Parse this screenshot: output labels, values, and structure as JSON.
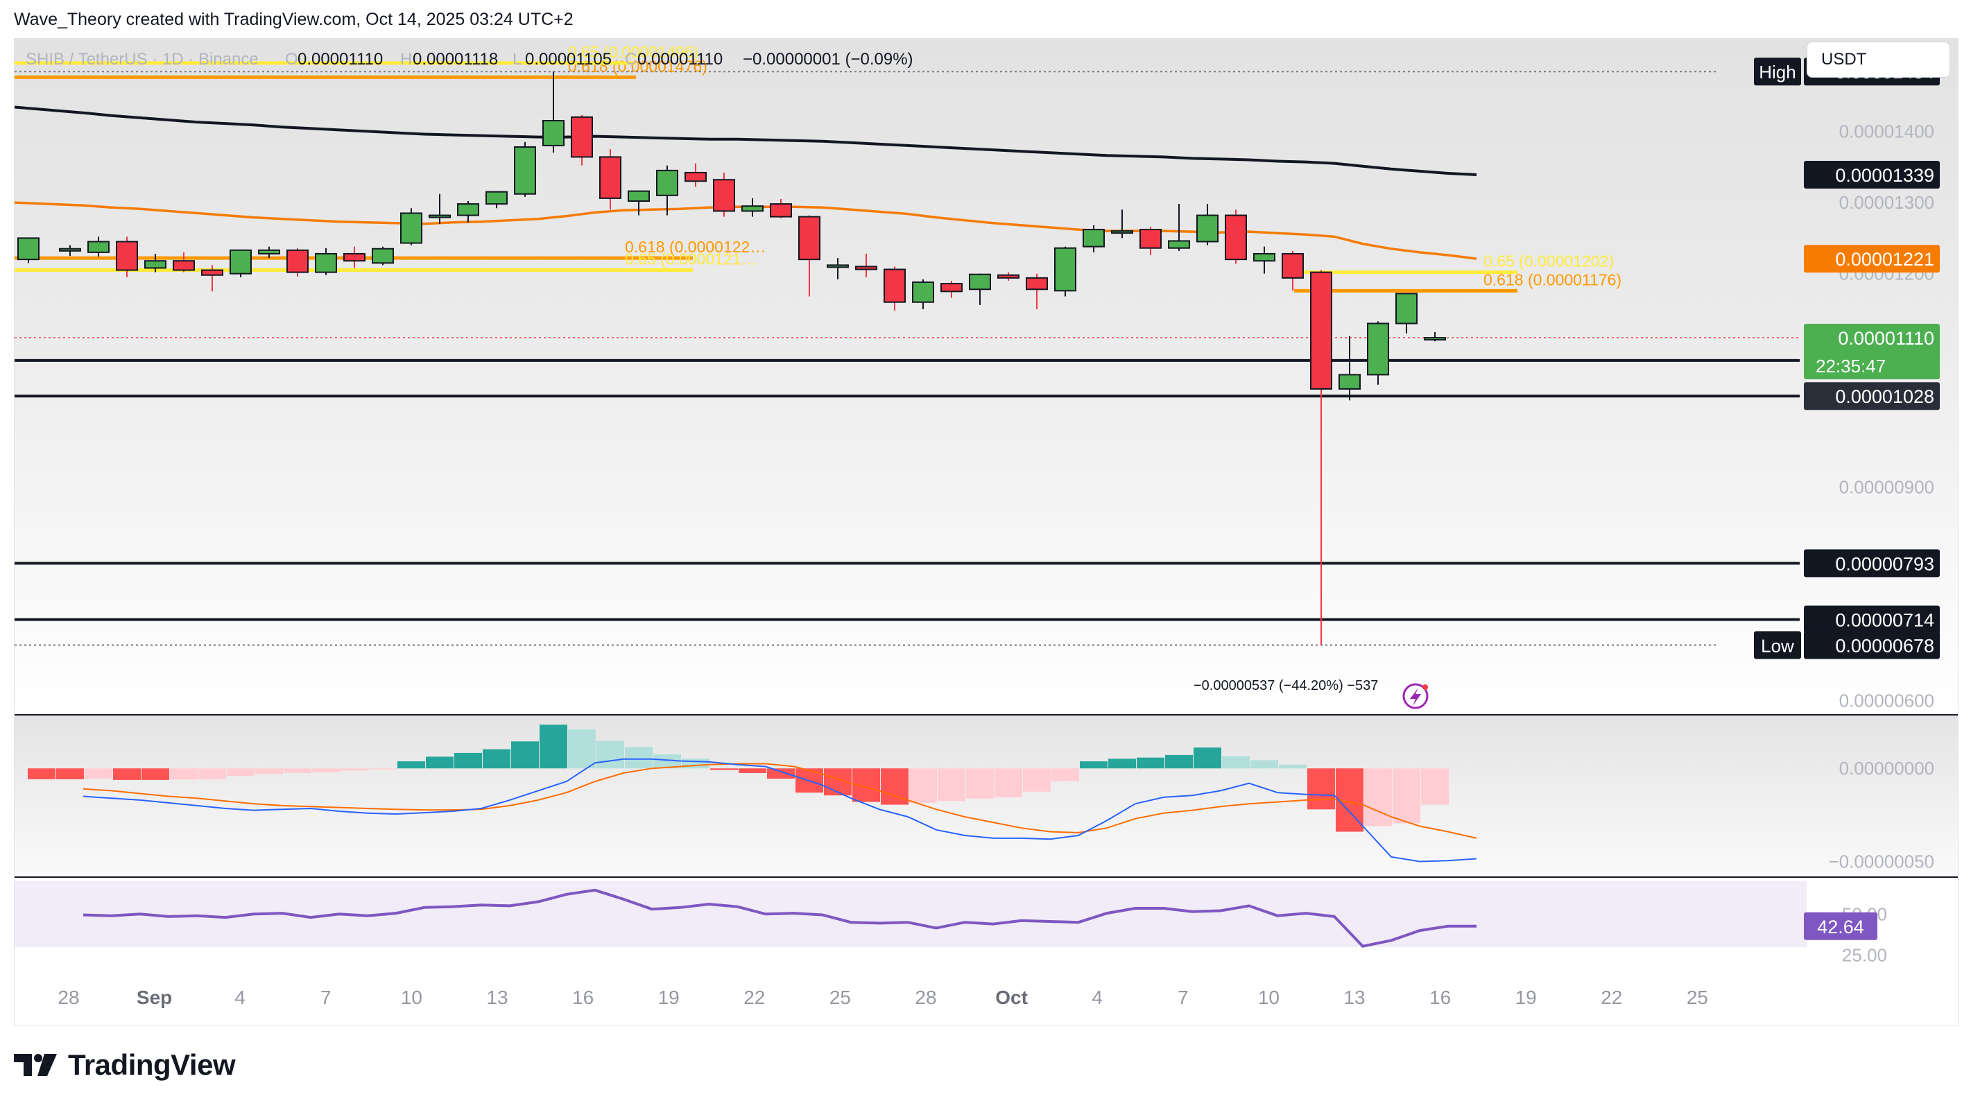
{
  "header": {
    "author_line": "Wave_Theory created with TradingView.com, Oct 14, 2025 03:24 UTC+2"
  },
  "legend": {
    "symbol": "SHIB / TetherUS · 1D · Binance",
    "o_label": "O",
    "o_value": "0.00001110",
    "h_label": "H",
    "h_value": "0.00001118",
    "l_label": "L",
    "l_value": "0.00001105",
    "c_label": "C",
    "c_value": "0.00001110",
    "change": "−0.00000001 (−0.09%)"
  },
  "currency_button": "USDT",
  "brand": {
    "logo_text": "TradingView"
  },
  "colors": {
    "up": "#4caf50",
    "down": "#f23645",
    "ema_slow": "#131722",
    "ema_fast": "#f57c00",
    "fib_yellow": "#ffeb3b",
    "fib_orange": "#ff9800",
    "macd_line": "#2962ff",
    "signal_line": "#ff6d00",
    "rsi_line": "#7e57c2",
    "last_price_bg": "#4caf50",
    "ema_fast_label_bg": "#f57c00",
    "level_label_bg": "#131722"
  },
  "chart_data": {
    "type": "candlestick",
    "title": "SHIB / TetherUS · 1D · Binance",
    "x_axis": {
      "tick_labels": [
        "28",
        "Sep",
        "4",
        "7",
        "10",
        "13",
        "16",
        "19",
        "22",
        "25",
        "28",
        "Oct",
        "4",
        "7",
        "10",
        "13",
        "16",
        "19",
        "22",
        "25"
      ],
      "bold_ticks": [
        "Sep",
        "Oct"
      ]
    },
    "price_axis": {
      "ylim": [
        5.8e-06,
        1.53e-05
      ],
      "ticks": [
        "0.00001400",
        "0.00001300",
        "0.00001200",
        "0.00000900",
        "0.00000600"
      ],
      "tick_values": [
        1.4e-05,
        1.3e-05,
        1.2e-05,
        9e-06,
        6e-06
      ],
      "grid": false
    },
    "candles": [
      {
        "o": 1.22e-05,
        "h": 1.245e-05,
        "l": 1.215e-05,
        "c": 1.25e-05
      },
      {
        "o": 1.232e-05,
        "h": 1.24e-05,
        "l": 1.225e-05,
        "c": 1.235e-05
      },
      {
        "o": 1.23e-05,
        "h": 1.252e-05,
        "l": 1.224e-05,
        "c": 1.245e-05
      },
      {
        "o": 1.245e-05,
        "h": 1.252e-05,
        "l": 1.195e-05,
        "c": 1.205e-05
      },
      {
        "o": 1.208e-05,
        "h": 1.228e-05,
        "l": 1.202e-05,
        "c": 1.218e-05
      },
      {
        "o": 1.218e-05,
        "h": 1.23e-05,
        "l": 1.202e-05,
        "c": 1.205e-05
      },
      {
        "o": 1.205e-05,
        "h": 1.212e-05,
        "l": 1.175e-05,
        "c": 1.198e-05
      },
      {
        "o": 1.2e-05,
        "h": 1.232e-05,
        "l": 1.195e-05,
        "c": 1.233e-05
      },
      {
        "o": 1.228e-05,
        "h": 1.238e-05,
        "l": 1.222e-05,
        "c": 1.233e-05
      },
      {
        "o": 1.233e-05,
        "h": 1.236e-05,
        "l": 1.196e-05,
        "c": 1.202e-05
      },
      {
        "o": 1.202e-05,
        "h": 1.236e-05,
        "l": 1.198e-05,
        "c": 1.228e-05
      },
      {
        "o": 1.228e-05,
        "h": 1.238e-05,
        "l": 1.208e-05,
        "c": 1.218e-05
      },
      {
        "o": 1.215e-05,
        "h": 1.238e-05,
        "l": 1.212e-05,
        "c": 1.235e-05
      },
      {
        "o": 1.243e-05,
        "h": 1.292e-05,
        "l": 1.24e-05,
        "c": 1.285e-05
      },
      {
        "o": 1.28e-05,
        "h": 1.312e-05,
        "l": 1.27e-05,
        "c": 1.282e-05
      },
      {
        "o": 1.282e-05,
        "h": 1.302e-05,
        "l": 1.272e-05,
        "c": 1.298e-05
      },
      {
        "o": 1.298e-05,
        "h": 1.316e-05,
        "l": 1.292e-05,
        "c": 1.315e-05
      },
      {
        "o": 1.312e-05,
        "h": 1.385e-05,
        "l": 1.308e-05,
        "c": 1.378e-05
      },
      {
        "o": 1.38e-05,
        "h": 1.484e-05,
        "l": 1.37e-05,
        "c": 1.415e-05
      },
      {
        "o": 1.42e-05,
        "h": 1.423e-05,
        "l": 1.352e-05,
        "c": 1.364e-05
      },
      {
        "o": 1.364e-05,
        "h": 1.375e-05,
        "l": 1.29e-05,
        "c": 1.306e-05
      },
      {
        "o": 1.302e-05,
        "h": 1.315e-05,
        "l": 1.282e-05,
        "c": 1.316e-05
      },
      {
        "o": 1.31e-05,
        "h": 1.352e-05,
        "l": 1.282e-05,
        "c": 1.345e-05
      },
      {
        "o": 1.342e-05,
        "h": 1.355e-05,
        "l": 1.322e-05,
        "c": 1.33e-05
      },
      {
        "o": 1.332e-05,
        "h": 1.342e-05,
        "l": 1.28e-05,
        "c": 1.288e-05
      },
      {
        "o": 1.288e-05,
        "h": 1.306e-05,
        "l": 1.28e-05,
        "c": 1.295e-05
      },
      {
        "o": 1.298e-05,
        "h": 1.305e-05,
        "l": 1.278e-05,
        "c": 1.28e-05
      },
      {
        "o": 1.28e-05,
        "h": 1.282e-05,
        "l": 1.168e-05,
        "c": 1.22e-05
      },
      {
        "o": 1.212e-05,
        "h": 1.222e-05,
        "l": 1.192e-05,
        "c": 1.212e-05
      },
      {
        "o": 1.21e-05,
        "h": 1.228e-05,
        "l": 1.195e-05,
        "c": 1.206e-05
      },
      {
        "o": 1.206e-05,
        "h": 1.21e-05,
        "l": 1.148e-05,
        "c": 1.16e-05
      },
      {
        "o": 1.16e-05,
        "h": 1.192e-05,
        "l": 1.15e-05,
        "c": 1.188e-05
      },
      {
        "o": 1.186e-05,
        "h": 1.19e-05,
        "l": 1.166e-05,
        "c": 1.175e-05
      },
      {
        "o": 1.178e-05,
        "h": 1.2e-05,
        "l": 1.156e-05,
        "c": 1.199e-05
      },
      {
        "o": 1.198e-05,
        "h": 1.202e-05,
        "l": 1.19e-05,
        "c": 1.194e-05
      },
      {
        "o": 1.194e-05,
        "h": 1.2e-05,
        "l": 1.15e-05,
        "c": 1.178e-05
      },
      {
        "o": 1.176e-05,
        "h": 1.238e-05,
        "l": 1.168e-05,
        "c": 1.236e-05
      },
      {
        "o": 1.238e-05,
        "h": 1.268e-05,
        "l": 1.23e-05,
        "c": 1.262e-05
      },
      {
        "o": 1.258e-05,
        "h": 1.29e-05,
        "l": 1.25e-05,
        "c": 1.26e-05
      },
      {
        "o": 1.262e-05,
        "h": 1.266e-05,
        "l": 1.226e-05,
        "c": 1.236e-05
      },
      {
        "o": 1.236e-05,
        "h": 1.298e-05,
        "l": 1.232e-05,
        "c": 1.246e-05
      },
      {
        "o": 1.245e-05,
        "h": 1.298e-05,
        "l": 1.24e-05,
        "c": 1.282e-05
      },
      {
        "o": 1.282e-05,
        "h": 1.29e-05,
        "l": 1.214e-05,
        "c": 1.22e-05
      },
      {
        "o": 1.218e-05,
        "h": 1.238e-05,
        "l": 1.2e-05,
        "c": 1.228e-05
      },
      {
        "o": 1.228e-05,
        "h": 1.232e-05,
        "l": 1.176e-05,
        "c": 1.194e-05
      },
      {
        "o": 1.202e-05,
        "h": 1.205e-05,
        "l": 6.78e-06,
        "c": 1.038e-05
      },
      {
        "o": 1.038e-05,
        "h": 1.112e-05,
        "l": 1.022e-05,
        "c": 1.058e-05
      },
      {
        "o": 1.058e-05,
        "h": 1.133e-05,
        "l": 1.044e-05,
        "c": 1.13e-05
      },
      {
        "o": 1.13e-05,
        "h": 1.172e-05,
        "l": 1.116e-05,
        "c": 1.172e-05
      },
      {
        "o": 1.11e-05,
        "h": 1.118e-05,
        "l": 1.105e-05,
        "c": 1.11e-05
      }
    ],
    "ema_slow_values": [
      1.426e-05,
      1.422e-05,
      1.419e-05,
      1.416e-05,
      1.413e-05,
      1.411e-05,
      1.409e-05,
      1.406e-05,
      1.404e-05,
      1.402e-05,
      1.4e-05,
      1.398e-05,
      1.396e-05,
      1.395e-05,
      1.394e-05,
      1.393e-05,
      1.392e-05,
      1.392e-05,
      1.393e-05,
      1.392e-05,
      1.391e-05,
      1.39e-05,
      1.389e-05,
      1.389e-05,
      1.388e-05,
      1.387e-05,
      1.386e-05,
      1.384e-05,
      1.382e-05,
      1.38e-05,
      1.378e-05,
      1.376e-05,
      1.374e-05,
      1.372e-05,
      1.37e-05,
      1.368e-05,
      1.366e-05,
      1.365e-05,
      1.364e-05,
      1.362e-05,
      1.361e-05,
      1.36e-05,
      1.358e-05,
      1.357e-05,
      1.355e-05,
      1.351e-05,
      1.347e-05,
      1.344e-05,
      1.341e-05,
      1.339e-05
    ],
    "ema_fast_values": [
      1.296e-05,
      1.293e-05,
      1.291e-05,
      1.288e-05,
      1.285e-05,
      1.282e-05,
      1.279e-05,
      1.277e-05,
      1.275e-05,
      1.273e-05,
      1.272e-05,
      1.271e-05,
      1.27e-05,
      1.272e-05,
      1.273e-05,
      1.275e-05,
      1.277e-05,
      1.281e-05,
      1.286e-05,
      1.289e-05,
      1.29e-05,
      1.291e-05,
      1.293e-05,
      1.294e-05,
      1.294e-05,
      1.294e-05,
      1.293e-05,
      1.29e-05,
      1.287e-05,
      1.284e-05,
      1.279e-05,
      1.275e-05,
      1.271e-05,
      1.268e-05,
      1.265e-05,
      1.262e-05,
      1.26e-05,
      1.26e-05,
      1.26e-05,
      1.259e-05,
      1.258e-05,
      1.259e-05,
      1.257e-05,
      1.255e-05,
      1.252e-05,
      1.242e-05,
      1.235e-05,
      1.23e-05,
      1.226e-05,
      1.221e-05
    ],
    "horizontal_levels": [
      {
        "value": 1.078e-05,
        "label": "0.00001078"
      },
      {
        "value": 1.028e-05,
        "label": "0.00001028"
      },
      {
        "value": 7.93e-06,
        "label": "0.00000793"
      },
      {
        "value": 7.14e-06,
        "label": "0.00000714"
      }
    ],
    "fib_zones": [
      {
        "start_index": 0,
        "end_index": 19,
        "value": 1.476e-05,
        "label": "0.618 (0.00001476)",
        "color": "orange"
      },
      {
        "start_index": 0,
        "end_index": 19,
        "value": 1.496e-05,
        "label": "0.65 (0.00001496)",
        "color": "yellow"
      },
      {
        "start_index": 0,
        "end_index": 21,
        "value": 1.222e-05,
        "label": "0.618 (0.0000122…",
        "color": "orange"
      },
      {
        "start_index": 0,
        "end_index": 21,
        "value": 1.205e-05,
        "label": "0.65 (0.0000121…",
        "color": "yellow"
      },
      {
        "start_index": 45,
        "end_index": 50,
        "value": 1.176e-05,
        "label": "0.618 (0.00001176)",
        "color": "orange"
      },
      {
        "start_index": 45,
        "end_index": 50,
        "value": 1.202e-05,
        "label": "0.65 (0.00001202)",
        "color": "yellow"
      }
    ],
    "axis_labels": [
      {
        "prefix": "High",
        "value": 1.484e-05,
        "text": "0.00001484",
        "style": "dark"
      },
      {
        "value": 1.339e-05,
        "text": "0.00001339",
        "style": "dark"
      },
      {
        "value": 1.221e-05,
        "text": "0.00001221",
        "style": "orange"
      },
      {
        "value": 1.11e-05,
        "text": "0.00001110",
        "sub": "22:35:47",
        "style": "green"
      },
      {
        "prefix": "Low",
        "value": 6.78e-06,
        "text": "0.00000678",
        "style": "dark"
      }
    ],
    "measure_annotation": "−0.00000537 (−44.20%) −537",
    "macd": {
      "ticks": [
        "0.00000000",
        "−0.00000050"
      ],
      "tick_values": [
        0.0,
        -5e-07
      ],
      "ylim": [
        -5.8e-07,
        2.8e-07
      ],
      "histogram": [
        -5.8e-08,
        -5.8e-08,
        -5.6e-08,
        -6.2e-08,
        -6.2e-08,
        -6e-08,
        -5.8e-08,
        -4e-08,
        -3e-08,
        -2.5e-08,
        -2e-08,
        -1.2e-08,
        -5e-09,
        3.8e-08,
        6.3e-08,
        8.3e-08,
        1.03e-07,
        1.45e-07,
        2.35e-07,
        2.1e-07,
        1.48e-07,
        1.15e-07,
        7.5e-08,
        5.2e-08,
        -8e-09,
        -2.5e-08,
        -5.5e-08,
        -1.3e-07,
        -1.45e-07,
        -1.8e-07,
        -1.95e-07,
        -1.85e-07,
        -1.75e-07,
        -1.62e-07,
        -1.55e-07,
        -1.25e-07,
        -6.8e-08,
        3.8e-08,
        5.2e-08,
        5.8e-08,
        7.2e-08,
        1.12e-07,
        6.6e-08,
        4.4e-08,
        2e-08,
        -2.2e-07,
        -3.4e-07,
        -3.1e-07,
        -2.95e-07,
        -1.95e-07
      ],
      "macd_line": [
        -1.5e-07,
        -1.6e-07,
        -1.7e-07,
        -1.85e-07,
        -2e-07,
        -2.15e-07,
        -2.25e-07,
        -2.2e-07,
        -2.15e-07,
        -2.3e-07,
        -2.4e-07,
        -2.45e-07,
        -2.38e-07,
        -2.3e-07,
        -2.15e-07,
        -1.7e-07,
        -1.2e-07,
        -7e-08,
        3e-08,
        5e-08,
        5e-08,
        4e-08,
        3.5e-08,
        2e-08,
        1e-08,
        -4e-08,
        -9e-08,
        -1.6e-07,
        -2.2e-07,
        -2.6e-07,
        -3.3e-07,
        -3.6e-07,
        -3.75e-07,
        -3.75e-07,
        -3.8e-07,
        -3.6e-07,
        -2.8e-07,
        -1.9e-07,
        -1.55e-07,
        -1.45e-07,
        -1.2e-07,
        -8e-08,
        -1.3e-07,
        -1.4e-07,
        -1.45e-07,
        -3.1e-07,
        -4.75e-07,
        -5e-07,
        -4.95e-07,
        -4.85e-07
      ],
      "signal_line": [
        -1.1e-07,
        -1.2e-07,
        -1.35e-07,
        -1.5e-07,
        -1.6e-07,
        -1.75e-07,
        -1.9e-07,
        -2e-07,
        -2.05e-07,
        -2.1e-07,
        -2.15e-07,
        -2.2e-07,
        -2.23e-07,
        -2.23e-07,
        -2.2e-07,
        -2e-07,
        -1.7e-07,
        -1.3e-07,
        -7e-08,
        -2.5e-08,
        0.0,
        1e-08,
        2e-08,
        2.5e-08,
        2.5e-08,
        1e-08,
        -3e-08,
        -8e-08,
        -1.2e-07,
        -1.7e-07,
        -2.2e-07,
        -2.6e-07,
        -2.9e-07,
        -3.2e-07,
        -3.4e-07,
        -3.45e-07,
        -3.2e-07,
        -2.7e-07,
        -2.4e-07,
        -2.25e-07,
        -2.05e-07,
        -1.9e-07,
        -1.8e-07,
        -1.7e-07,
        -1.65e-07,
        -1.95e-07,
        -2.6e-07,
        -3.1e-07,
        -3.4e-07,
        -3.75e-07
      ],
      "last_values": [
        -1.95e-07,
        -4.85e-07,
        -3.75e-07
      ]
    },
    "rsi": {
      "ticks": [
        "50.00",
        "25.00"
      ],
      "tick_values": [
        50,
        25
      ],
      "ylim": [
        19,
        72
      ],
      "band": [
        30,
        70
      ],
      "values": [
        49.5,
        49.0,
        50.0,
        48.5,
        49.0,
        48.0,
        50.0,
        50.5,
        48.0,
        50.0,
        49.0,
        50.5,
        54.0,
        54.5,
        55.5,
        55.0,
        57.5,
        62.0,
        64.5,
        59.0,
        53.0,
        54.0,
        56.0,
        54.5,
        50.0,
        50.5,
        49.5,
        45.0,
        44.5,
        45.0,
        41.5,
        45.0,
        44.0,
        46.0,
        45.5,
        45.0,
        50.5,
        53.5,
        53.5,
        51.5,
        52.0,
        55.0,
        49.0,
        50.5,
        48.5,
        30.5,
        34.0,
        40.0,
        42.64,
        42.64
      ],
      "last_label": "42.64"
    }
  }
}
